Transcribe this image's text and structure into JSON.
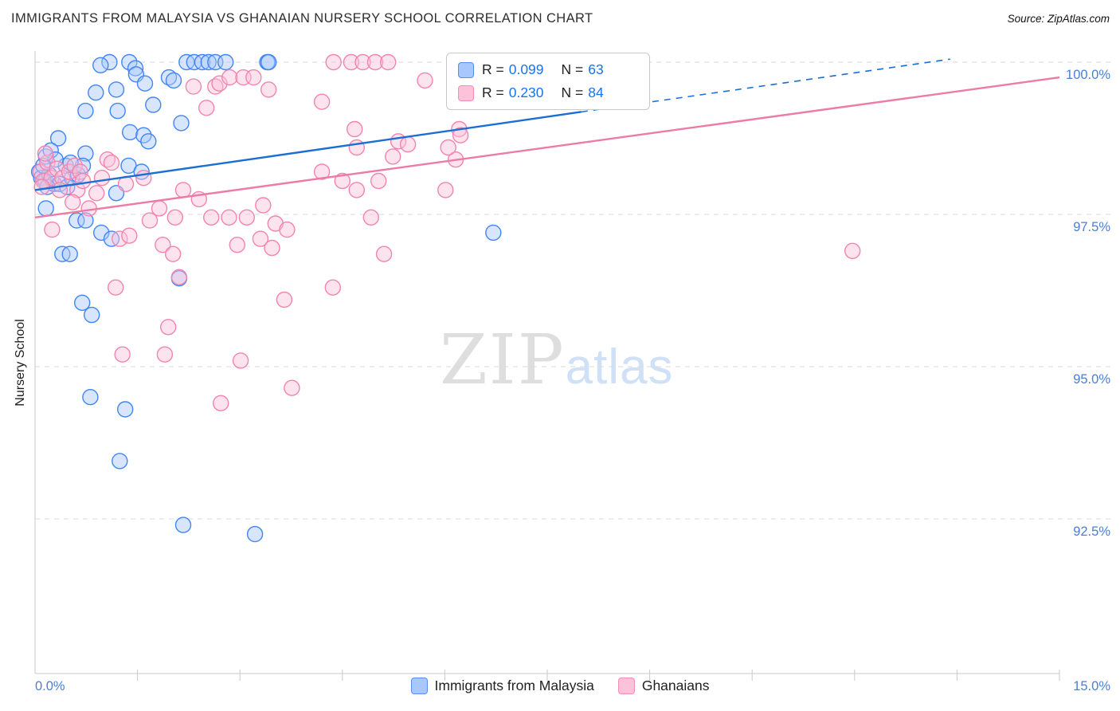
{
  "header": {
    "title": "IMMIGRANTS FROM MALAYSIA VS GHANAIAN NURSERY SCHOOL CORRELATION CHART",
    "source_prefix": "Source:",
    "source_name": "ZipAtlas.com"
  },
  "watermark": {
    "part1": "ZIP",
    "part2": "atlas"
  },
  "y_axis_label": "Nursery School",
  "legend": {
    "rows": [
      {
        "r_prefix": "R =",
        "r_value": "0.099",
        "n_prefix": "N =",
        "n_value": "63"
      },
      {
        "r_prefix": "R =",
        "r_value": "0.230",
        "n_prefix": "N =",
        "n_value": "84"
      }
    ]
  },
  "bottom_legend": [
    {
      "label": "Immigrants from Malaysia",
      "swatch": "blue"
    },
    {
      "label": "Ghanaians",
      "swatch": "pink"
    }
  ],
  "colors": {
    "blue_fill": "#a8c7fa",
    "blue_stroke": "#4285f4",
    "blue_trend": "#1a6fd4",
    "pink_fill": "#fbc2d9",
    "pink_stroke": "#f285ad",
    "pink_trend": "#ec7ba6",
    "grid": "#d9d9d9",
    "axis": "#c9c9c9",
    "tick_label": "#4a7fd4"
  },
  "chart_data": {
    "type": "scatter",
    "title": "IMMIGRANTS FROM MALAYSIA VS GHANAIAN NURSERY SCHOOL CORRELATION CHART",
    "xlabel": "Immigrants from Malaysia (%)",
    "ylabel": "Nursery School",
    "x_axis": {
      "min": 0,
      "max": 15,
      "min_label": "0.0%",
      "max_label": "15.0%",
      "tick_step": 1.5
    },
    "y_ticks": [
      {
        "value": 100.0,
        "label": "100.0%"
      },
      {
        "value": 97.5,
        "label": "97.5%"
      },
      {
        "value": 95.0,
        "label": "95.0%"
      },
      {
        "value": 92.5,
        "label": "92.5%"
      }
    ],
    "grid": "horizontal-dashed",
    "legend_position": "top-center",
    "series": [
      {
        "name": "Immigrants from Malaysia",
        "R": 0.099,
        "N": 63,
        "points": [
          [
            1.09,
            100.0
          ],
          [
            1.38,
            100.0
          ],
          [
            2.22,
            100.0
          ],
          [
            2.33,
            100.0
          ],
          [
            2.45,
            100.0
          ],
          [
            2.54,
            100.0
          ],
          [
            2.64,
            100.0
          ],
          [
            2.79,
            100.0
          ],
          [
            3.4,
            100.0
          ],
          [
            3.42,
            100.0
          ],
          [
            1.47,
            99.9
          ],
          [
            0.96,
            99.95
          ],
          [
            1.48,
            99.8
          ],
          [
            0.89,
            99.5
          ],
          [
            1.19,
            99.55
          ],
          [
            1.61,
            99.65
          ],
          [
            1.96,
            99.75
          ],
          [
            2.03,
            99.7
          ],
          [
            0.74,
            99.2
          ],
          [
            1.21,
            99.2
          ],
          [
            1.73,
            99.3
          ],
          [
            2.14,
            99.0
          ],
          [
            1.39,
            98.85
          ],
          [
            1.59,
            98.8
          ],
          [
            0.34,
            98.75
          ],
          [
            1.66,
            98.7
          ],
          [
            0.74,
            98.5
          ],
          [
            0.16,
            98.45
          ],
          [
            0.23,
            98.55
          ],
          [
            0.06,
            98.2
          ],
          [
            0.09,
            98.1
          ],
          [
            0.15,
            98.05
          ],
          [
            0.21,
            98.15
          ],
          [
            0.28,
            98.0
          ],
          [
            0.36,
            98.0
          ],
          [
            0.47,
            97.95
          ],
          [
            0.54,
            98.1
          ],
          [
            0.63,
            98.15
          ],
          [
            0.7,
            98.3
          ],
          [
            0.45,
            98.3
          ],
          [
            0.3,
            98.4
          ],
          [
            0.52,
            98.35
          ],
          [
            0.12,
            98.3
          ],
          [
            0.18,
            97.95
          ],
          [
            1.37,
            98.3
          ],
          [
            1.56,
            98.2
          ],
          [
            1.19,
            97.85
          ],
          [
            0.16,
            97.6
          ],
          [
            0.61,
            97.4
          ],
          [
            0.74,
            97.4
          ],
          [
            0.97,
            97.2
          ],
          [
            1.12,
            97.1
          ],
          [
            0.4,
            96.85
          ],
          [
            0.51,
            96.85
          ],
          [
            2.11,
            96.45
          ],
          [
            0.69,
            96.05
          ],
          [
            0.83,
            95.85
          ],
          [
            0.81,
            94.5
          ],
          [
            1.32,
            94.3
          ],
          [
            1.24,
            93.45
          ],
          [
            2.17,
            92.4
          ],
          [
            3.22,
            92.25
          ],
          [
            6.71,
            97.2
          ]
        ]
      },
      {
        "name": "Ghanaians",
        "R": 0.23,
        "N": 84,
        "points": [
          [
            4.37,
            100.0
          ],
          [
            4.63,
            100.0
          ],
          [
            4.8,
            100.0
          ],
          [
            4.98,
            100.0
          ],
          [
            5.17,
            100.0
          ],
          [
            5.71,
            99.7
          ],
          [
            6.92,
            100.0
          ],
          [
            2.32,
            99.6
          ],
          [
            2.64,
            99.6
          ],
          [
            2.7,
            99.65
          ],
          [
            2.85,
            99.75
          ],
          [
            3.05,
            99.75
          ],
          [
            3.2,
            99.75
          ],
          [
            3.42,
            99.55
          ],
          [
            4.2,
            99.35
          ],
          [
            2.51,
            99.25
          ],
          [
            4.68,
            98.9
          ],
          [
            4.71,
            98.6
          ],
          [
            6.21,
            98.9
          ],
          [
            6.23,
            98.8
          ],
          [
            6.16,
            98.4
          ],
          [
            5.32,
            98.7
          ],
          [
            5.46,
            98.65
          ],
          [
            5.24,
            98.45
          ],
          [
            4.2,
            98.2
          ],
          [
            4.5,
            98.05
          ],
          [
            4.71,
            97.9
          ],
          [
            5.03,
            98.05
          ],
          [
            6.01,
            97.9
          ],
          [
            6.05,
            98.6
          ],
          [
            1.06,
            98.4
          ],
          [
            1.12,
            98.35
          ],
          [
            0.98,
            98.1
          ],
          [
            1.33,
            98.0
          ],
          [
            1.59,
            98.1
          ],
          [
            0.62,
            97.9
          ],
          [
            0.08,
            98.2
          ],
          [
            0.12,
            98.05
          ],
          [
            0.18,
            98.35
          ],
          [
            0.24,
            98.1
          ],
          [
            0.32,
            98.25
          ],
          [
            0.4,
            98.1
          ],
          [
            0.5,
            98.2
          ],
          [
            0.58,
            98.3
          ],
          [
            0.66,
            98.2
          ],
          [
            0.1,
            97.95
          ],
          [
            0.36,
            97.9
          ],
          [
            0.15,
            98.5
          ],
          [
            0.7,
            98.05
          ],
          [
            0.9,
            97.85
          ],
          [
            0.55,
            97.7
          ],
          [
            2.17,
            97.9
          ],
          [
            2.4,
            97.75
          ],
          [
            1.82,
            97.6
          ],
          [
            2.05,
            97.45
          ],
          [
            2.58,
            97.45
          ],
          [
            2.84,
            97.45
          ],
          [
            3.1,
            97.45
          ],
          [
            3.34,
            97.65
          ],
          [
            0.25,
            97.25
          ],
          [
            1.24,
            97.1
          ],
          [
            1.38,
            97.15
          ],
          [
            0.79,
            97.6
          ],
          [
            1.68,
            97.4
          ],
          [
            1.87,
            97.0
          ],
          [
            2.02,
            96.85
          ],
          [
            3.52,
            97.35
          ],
          [
            3.69,
            97.25
          ],
          [
            3.3,
            97.1
          ],
          [
            3.47,
            96.95
          ],
          [
            2.96,
            97.0
          ],
          [
            4.92,
            97.45
          ],
          [
            5.11,
            96.85
          ],
          [
            4.36,
            96.3
          ],
          [
            3.65,
            96.1
          ],
          [
            1.18,
            96.3
          ],
          [
            2.11,
            96.47
          ],
          [
            1.95,
            95.65
          ],
          [
            1.28,
            95.2
          ],
          [
            1.9,
            95.2
          ],
          [
            3.01,
            95.1
          ],
          [
            3.76,
            94.65
          ],
          [
            2.72,
            94.4
          ],
          [
            11.97,
            96.9
          ]
        ]
      }
    ],
    "trendlines": [
      {
        "series": "Immigrants from Malaysia",
        "x_start": 0,
        "y_start": 97.9,
        "x_end": 13.4,
        "y_end": 100.05,
        "solid_until_x": 8.0
      },
      {
        "series": "Ghanaians",
        "x_start": 0,
        "y_start": 97.45,
        "x_end": 15.0,
        "y_end": 99.75,
        "solid_until_x": 15.0
      }
    ]
  }
}
